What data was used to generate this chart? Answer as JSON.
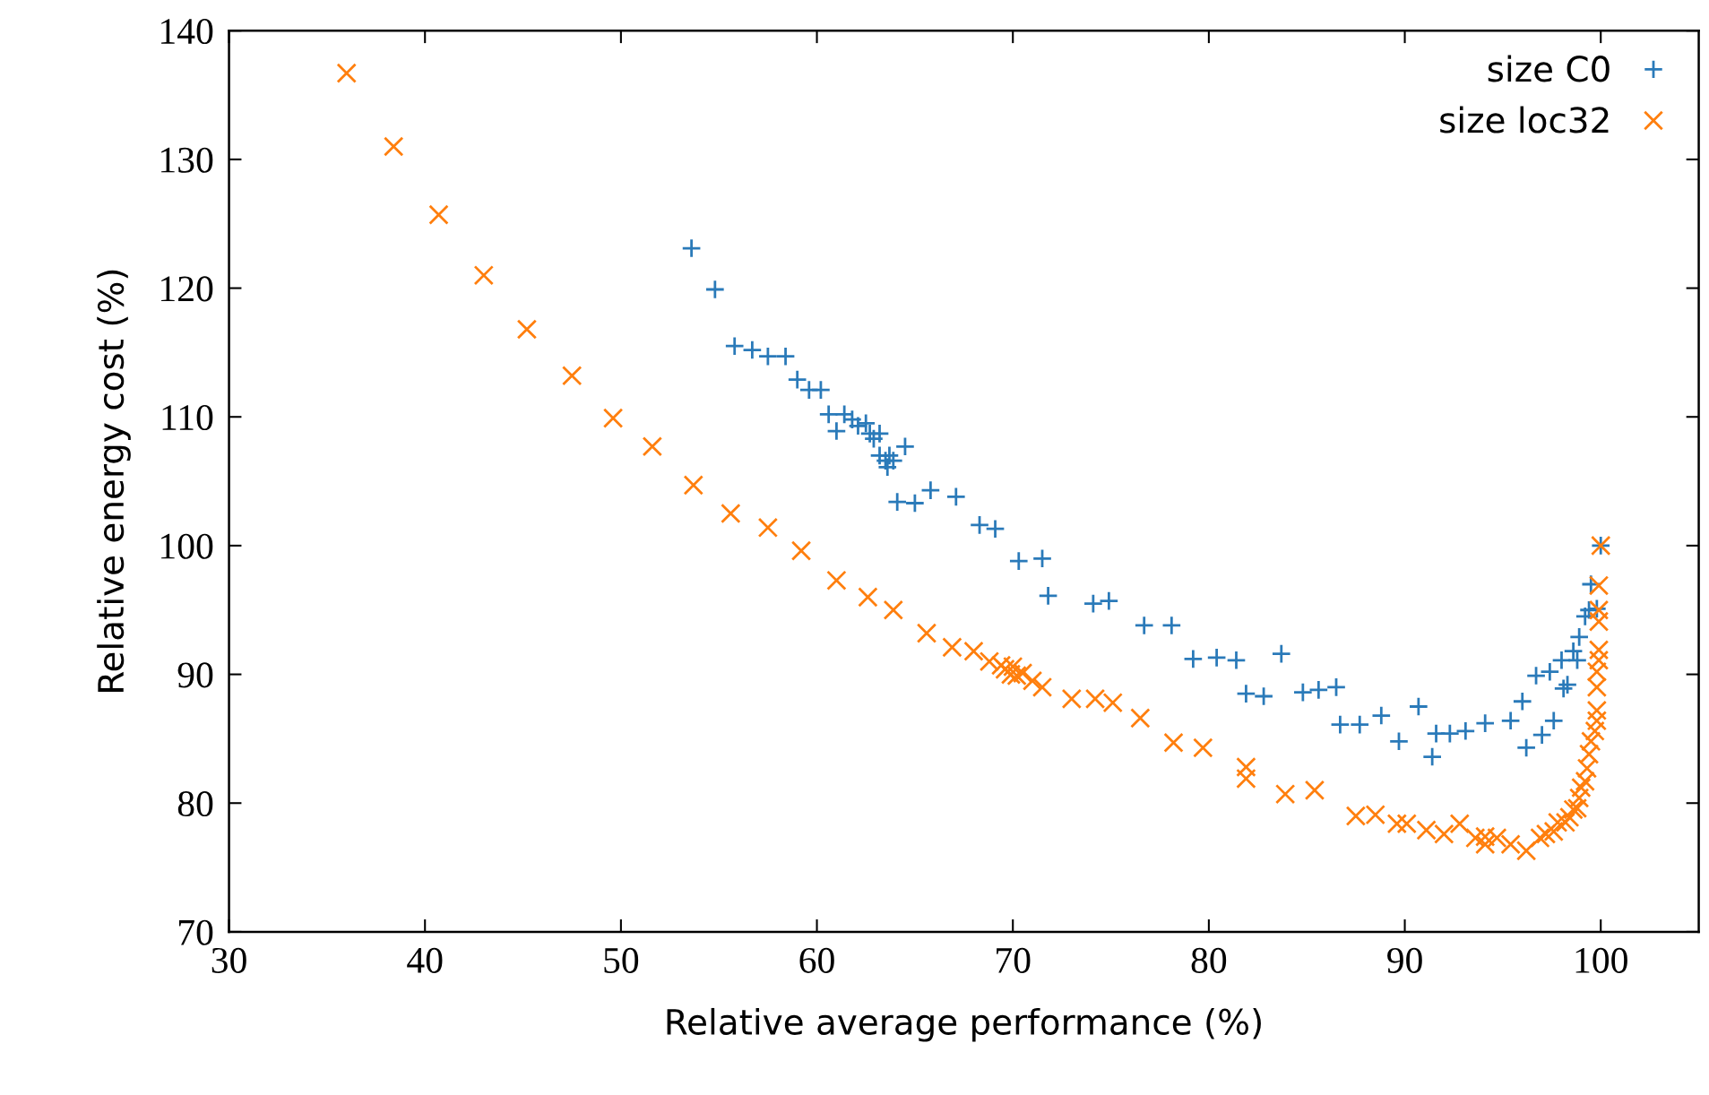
{
  "chart_data": {
    "type": "scatter",
    "xlabel": "Relative average performance (%)",
    "ylabel": "Relative energy cost (%)",
    "xlim": [
      30,
      105
    ],
    "xticks": [
      30,
      40,
      50,
      60,
      70,
      80,
      90,
      100
    ],
    "ylim": [
      70,
      140
    ],
    "yticks": [
      70,
      80,
      90,
      100,
      110,
      120,
      130,
      140
    ],
    "grid": false,
    "legend": "top right",
    "series": [
      {
        "name": "size C0",
        "color": "#2a7ab9",
        "marker": "plus",
        "x": [
          53.6,
          54.8,
          55.8,
          56.7,
          57.5,
          58.4,
          59.0,
          59.6,
          60.2,
          60.6,
          61.0,
          61.4,
          61.8,
          62.1,
          62.5,
          62.7,
          62.9,
          63.2,
          63.2,
          63.5,
          63.6,
          63.7,
          63.9,
          64.1,
          64.5,
          65.0,
          65.8,
          67.1,
          68.3,
          69.1,
          70.3,
          71.5,
          71.8,
          74.1,
          74.9,
          76.7,
          78.1,
          79.2,
          80.4,
          81.4,
          81.9,
          82.8,
          83.7,
          84.8,
          85.6,
          86.5,
          86.7,
          87.7,
          88.8,
          89.7,
          90.7,
          91.4,
          91.6,
          92.3,
          93.1,
          94.1,
          95.4,
          96.0,
          96.2,
          96.7,
          97.0,
          97.4,
          97.6,
          98.0,
          98.1,
          98.3,
          98.6,
          98.9,
          98.8,
          99.2,
          99.4,
          99.5,
          99.8,
          100
        ],
        "values": [
          123.1,
          119.9,
          115.5,
          115.2,
          114.7,
          114.7,
          112.9,
          112.1,
          112.1,
          110.2,
          108.9,
          110.2,
          109.8,
          109.3,
          109.5,
          108.7,
          108.3,
          108.7,
          107.0,
          106.6,
          106.1,
          107.0,
          106.6,
          103.4,
          107.7,
          103.3,
          104.3,
          103.8,
          101.6,
          101.3,
          98.8,
          99.0,
          96.1,
          95.5,
          95.7,
          93.8,
          93.8,
          91.2,
          91.3,
          91.1,
          88.5,
          88.3,
          91.6,
          88.6,
          88.8,
          89.0,
          86.1,
          86.1,
          86.8,
          84.8,
          87.5,
          83.6,
          85.4,
          85.4,
          85.6,
          86.2,
          86.4,
          87.9,
          84.3,
          89.9,
          85.3,
          90.2,
          86.4,
          91.1,
          88.9,
          89.2,
          91.8,
          92.9,
          91.1,
          94.5,
          95.0,
          97.0,
          95.1,
          100
        ]
      },
      {
        "name": "size loc32",
        "color": "#ff7f0e",
        "marker": "cross",
        "x": [
          36.0,
          38.4,
          40.7,
          43.0,
          45.2,
          47.5,
          49.6,
          51.6,
          53.7,
          55.6,
          57.5,
          59.2,
          61.0,
          62.6,
          63.9,
          65.6,
          66.9,
          68.0,
          68.8,
          69.4,
          69.6,
          69.9,
          70.0,
          70.2,
          70.5,
          71.0,
          71.5,
          73.0,
          74.2,
          75.1,
          76.5,
          78.2,
          79.7,
          81.9,
          81.9,
          83.9,
          85.4,
          87.5,
          88.5,
          89.6,
          90.1,
          91.1,
          92.0,
          92.8,
          93.6,
          94.1,
          94.1,
          94.7,
          95.4,
          96.2,
          96.9,
          97.2,
          97.6,
          97.8,
          98.2,
          98.4,
          98.6,
          98.8,
          98.9,
          99.0,
          99.2,
          99.3,
          99.4,
          99.5,
          99.7,
          99.8,
          99.8,
          99.8,
          99.8,
          99.9,
          99.9,
          99.9,
          99.9,
          99.9,
          100
        ],
        "values": [
          136.7,
          131.0,
          125.7,
          121.0,
          116.8,
          113.2,
          109.9,
          107.7,
          104.7,
          102.5,
          101.4,
          99.6,
          97.3,
          96.0,
          95.0,
          93.2,
          92.1,
          91.8,
          91.0,
          90.7,
          90.4,
          90.0,
          90.6,
          89.9,
          90.1,
          89.5,
          89.0,
          88.1,
          88.1,
          87.8,
          86.6,
          84.7,
          84.3,
          82.8,
          81.9,
          80.7,
          81.0,
          79.0,
          79.1,
          78.4,
          78.4,
          77.9,
          77.6,
          78.4,
          77.3,
          77.4,
          76.8,
          77.3,
          76.8,
          76.3,
          77.3,
          77.6,
          77.8,
          78.5,
          78.5,
          78.9,
          79.5,
          79.6,
          80.4,
          81.2,
          81.7,
          82.7,
          83.8,
          84.8,
          85.6,
          86.4,
          87.2,
          89.0,
          90.2,
          91.1,
          91.9,
          94.1,
          95.0,
          96.9,
          100
        ]
      }
    ]
  }
}
